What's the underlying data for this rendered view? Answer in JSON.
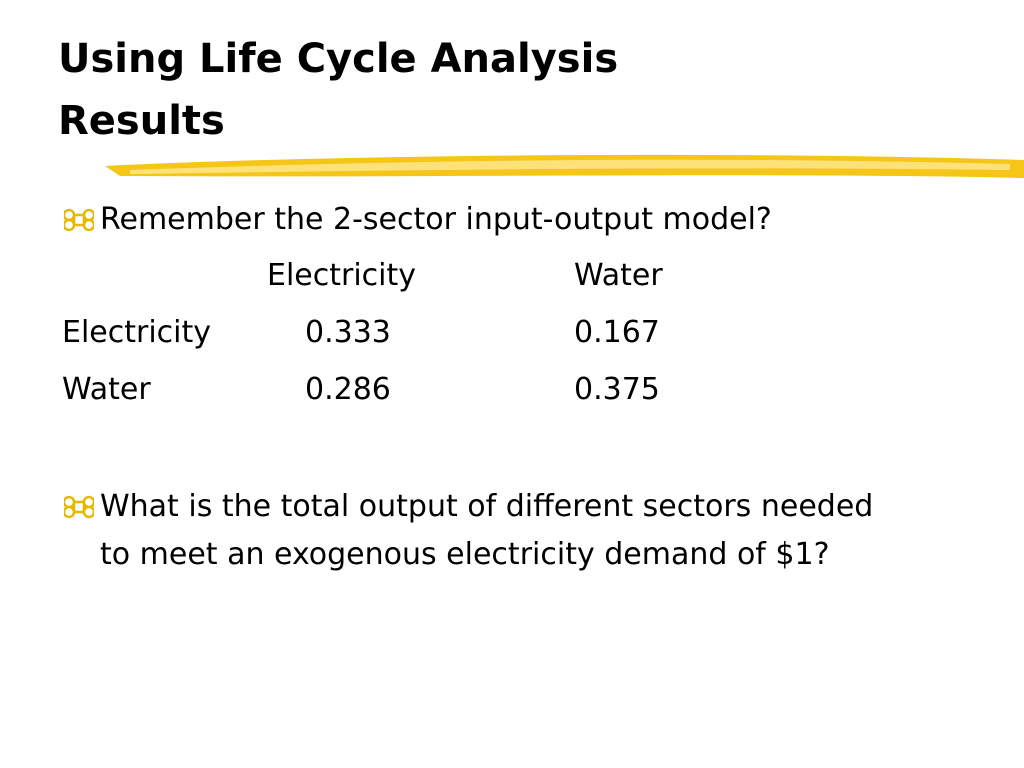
{
  "title": "Using Life Cycle Analysis Results",
  "bullets": [
    "Remember the 2-sector input-output model?",
    "What is the total output of different sectors needed to meet an exogenous electricity demand of $1?"
  ],
  "table": {
    "header": [
      "Electricity",
      "Water"
    ],
    "rows": [
      [
        "Electricity",
        "0.333",
        "0.167"
      ],
      [
        "Water",
        "0.286",
        "0.375"
      ]
    ]
  }
}
